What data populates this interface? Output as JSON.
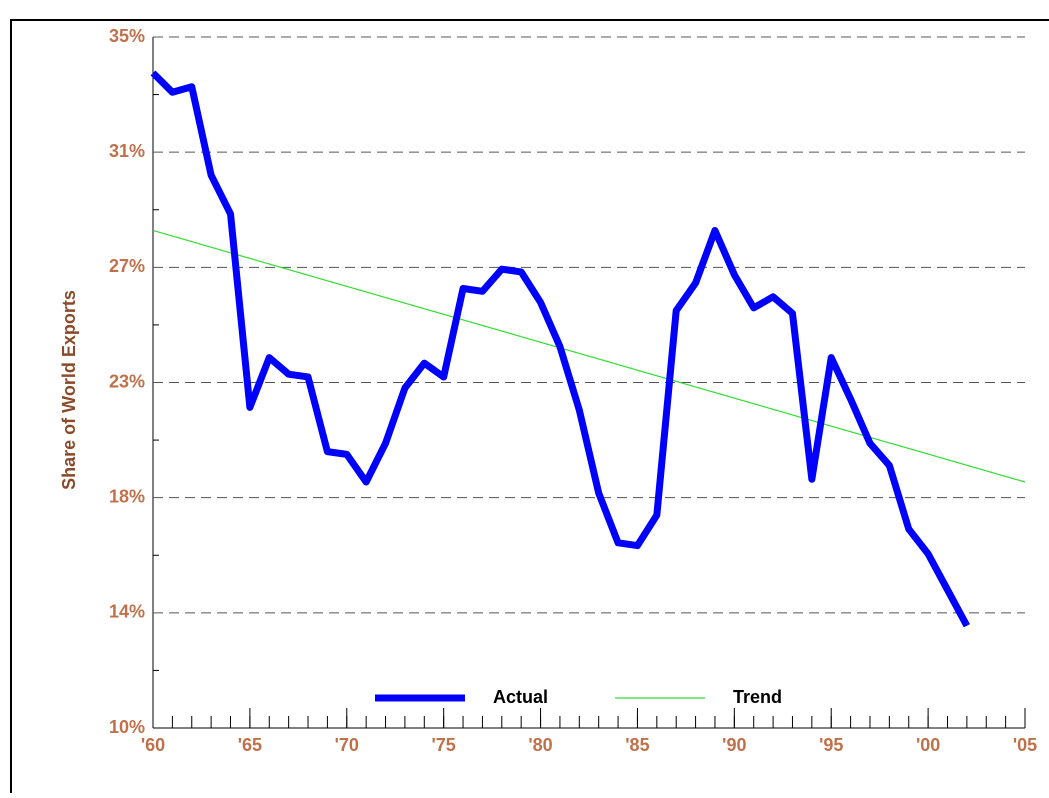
{
  "chart_data": {
    "type": "line",
    "ylabel": "Share of World Exports",
    "xlim": [
      1960,
      2005
    ],
    "xticks": [
      {
        "value": 1960,
        "label": "'60"
      },
      {
        "value": 1965,
        "label": "'65"
      },
      {
        "value": 1970,
        "label": "'70"
      },
      {
        "value": 1975,
        "label": "'75"
      },
      {
        "value": 1980,
        "label": "'80"
      },
      {
        "value": 1985,
        "label": "'85"
      },
      {
        "value": 1990,
        "label": "'90"
      },
      {
        "value": 1995,
        "label": "'95"
      },
      {
        "value": 2000,
        "label": "'00"
      },
      {
        "value": 2005,
        "label": "'05"
      }
    ],
    "ylim": [
      10,
      35
    ],
    "yticks": [
      {
        "value": 10,
        "label": "10%"
      },
      {
        "value": 14.1667,
        "label": "14%"
      },
      {
        "value": 18.3333,
        "label": "18%"
      },
      {
        "value": 22.5,
        "label": "23%"
      },
      {
        "value": 26.6667,
        "label": "27%"
      },
      {
        "value": 30.8333,
        "label": "31%"
      },
      {
        "value": 35,
        "label": "35%"
      }
    ],
    "grid": true,
    "legend": "bottom",
    "series": [
      {
        "name": "Actual",
        "color": "#0000ff",
        "width": 7,
        "x": [
          1960,
          1961,
          1962,
          1963,
          1964,
          1965,
          1966,
          1967,
          1968,
          1969,
          1970,
          1971,
          1972,
          1973,
          1974,
          1975,
          1976,
          1977,
          1978,
          1979,
          1980,
          1981,
          1982,
          1983,
          1984,
          1985,
          1986,
          1987,
          1988,
          1989,
          1990,
          1991,
          1992,
          1993,
          1994,
          1995,
          1996,
          1997,
          1998,
          1999,
          2000,
          2001,
          2002
        ],
        "values": [
          33.7,
          33.0,
          33.2,
          30.0,
          28.6,
          21.6,
          23.4,
          22.8,
          22.7,
          20.0,
          19.9,
          18.9,
          20.3,
          22.3,
          23.2,
          22.7,
          25.9,
          25.8,
          26.6,
          26.5,
          25.4,
          23.8,
          21.5,
          18.5,
          16.7,
          16.6,
          17.7,
          25.1,
          26.1,
          28.0,
          26.4,
          25.2,
          25.6,
          25.0,
          19.0,
          23.4,
          21.9,
          20.3,
          19.5,
          17.2,
          16.3,
          15.0,
          13.7
        ]
      },
      {
        "name": "Trend",
        "color": "#33dd33",
        "width": 1.2,
        "x": [
          1960,
          2005
        ],
        "values": [
          28.0,
          18.9
        ]
      }
    ]
  }
}
